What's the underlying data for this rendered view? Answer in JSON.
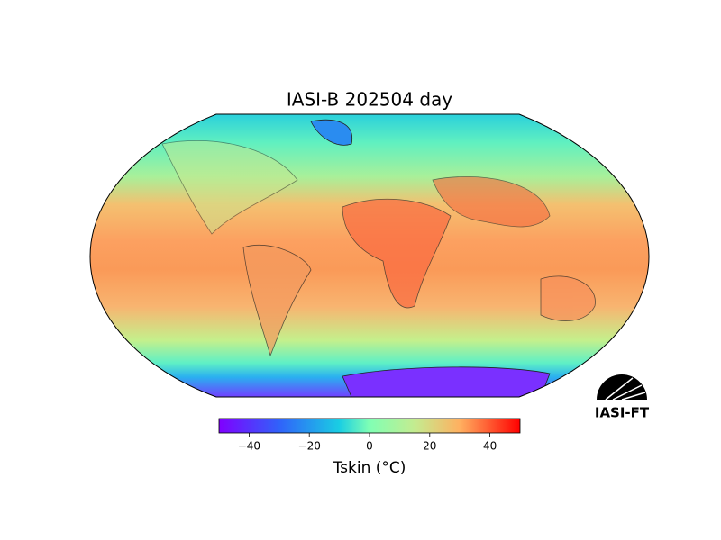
{
  "title": "IASI-B 202504 day",
  "colorbar": {
    "label": "Tskin (°C)",
    "lim": [
      -50,
      50
    ],
    "ticks": [
      {
        "value": -40,
        "label": "−40"
      },
      {
        "value": -20,
        "label": "−20"
      },
      0,
      20,
      40
    ]
  },
  "logo": "IASI-FT"
}
